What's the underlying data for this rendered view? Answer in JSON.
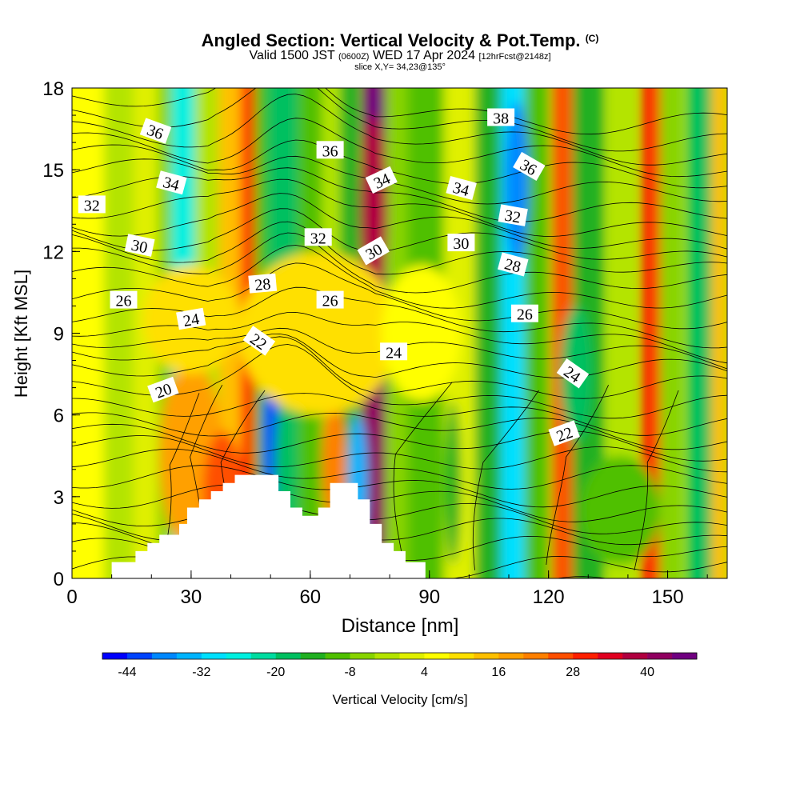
{
  "chart_data": {
    "type": "heatmap",
    "title": "Angled Section: Vertical Velocity & Pot.Temp.",
    "title_mark": "(C)",
    "subtitle": {
      "valid": "Valid 1500 JST",
      "utc": "(0600Z)",
      "date": "WED 17 Apr 2024",
      "forecast": "[12hrFcst@2148z]"
    },
    "slice_label": "slice X,Y= 34,23@135°",
    "xlabel": "Distance [nm]",
    "ylabel": "Height [Kft MSL]",
    "xlim": [
      0,
      165
    ],
    "ylim": [
      0,
      18
    ],
    "xticks": [
      "0",
      "30",
      "60",
      "90",
      "120",
      "150"
    ],
    "xtick_values": [
      0,
      30,
      60,
      90,
      120,
      150
    ],
    "yticks": [
      "0",
      "3",
      "6",
      "9",
      "12",
      "15",
      "18"
    ],
    "ytick_values": [
      0,
      3,
      6,
      9,
      12,
      15,
      18
    ],
    "colorbar": {
      "label": "Vertical Velocity [cm/s]",
      "tick_labels": [
        "-44",
        "-32",
        "-20",
        "-8",
        "4",
        "16",
        "28",
        "40"
      ],
      "tick_values": [
        -44,
        -32,
        -20,
        -8,
        4,
        16,
        28,
        40
      ],
      "levels": [
        -48,
        -44,
        -40,
        -36,
        -32,
        -28,
        -24,
        -20,
        -16,
        -12,
        -8,
        -4,
        0,
        4,
        8,
        12,
        16,
        20,
        24,
        28,
        32,
        36,
        40,
        44,
        48
      ],
      "colors": [
        "#0000ff",
        "#0044ff",
        "#0088ff",
        "#00b4ff",
        "#00e0ff",
        "#00f0e0",
        "#00dca0",
        "#00c060",
        "#20b020",
        "#50c000",
        "#88d400",
        "#b4e400",
        "#e0f000",
        "#ffff00",
        "#ffe000",
        "#ffc000",
        "#ffa000",
        "#ff8000",
        "#ff5000",
        "#ff2000",
        "#e00020",
        "#b00040",
        "#900060",
        "#700080"
      ]
    },
    "velocity_columns": [
      {
        "x": 3,
        "w": 10,
        "v": 6
      },
      {
        "x": 12,
        "w": 8,
        "v": -4
      },
      {
        "x": 19,
        "w": 7,
        "v": 2
      },
      {
        "x": 24,
        "w": 5,
        "v": -8
      },
      {
        "x": 28,
        "w": 6,
        "v": -28
      },
      {
        "x": 34,
        "w": 6,
        "v": -4
      },
      {
        "x": 40,
        "w": 6,
        "v": 12
      },
      {
        "x": 45,
        "w": 5,
        "v": 30
      },
      {
        "x": 48,
        "w": 4,
        "v": -12
      },
      {
        "x": 53,
        "w": 8,
        "v": -20
      },
      {
        "x": 60,
        "w": 6,
        "v": -10
      },
      {
        "x": 66,
        "w": 6,
        "v": -4
      },
      {
        "x": 70,
        "w": 5,
        "v": -16
      },
      {
        "x": 76,
        "w": 6,
        "v": 40
      },
      {
        "x": 82,
        "w": 6,
        "v": -8
      },
      {
        "x": 89,
        "w": 9,
        "v": -12
      },
      {
        "x": 98,
        "w": 8,
        "v": 2
      },
      {
        "x": 105,
        "w": 7,
        "v": -16
      },
      {
        "x": 111,
        "w": 6,
        "v": -32
      },
      {
        "x": 117,
        "w": 6,
        "v": -12
      },
      {
        "x": 124,
        "w": 6,
        "v": 24
      },
      {
        "x": 130,
        "w": 8,
        "v": -16
      },
      {
        "x": 138,
        "w": 6,
        "v": -4
      },
      {
        "x": 146,
        "w": 5,
        "v": 28
      },
      {
        "x": 151,
        "w": 6,
        "v": -8
      },
      {
        "x": 158,
        "w": 6,
        "v": -20
      },
      {
        "x": 163,
        "w": 4,
        "v": 12
      }
    ],
    "velocity_blobs": [
      {
        "x": 30,
        "y": 4.5,
        "rx": 8,
        "ry": 3.5,
        "v": 16
      },
      {
        "x": 38,
        "y": 3.2,
        "rx": 5,
        "ry": 2.2,
        "v": 24
      },
      {
        "x": 51,
        "y": 5,
        "rx": 3,
        "ry": 3.5,
        "v": -44
      },
      {
        "x": 54,
        "y": 4,
        "rx": 3,
        "ry": 3,
        "v": -20
      },
      {
        "x": 66,
        "y": 4.2,
        "rx": 3,
        "ry": 2.5,
        "v": 20
      },
      {
        "x": 72,
        "y": 3.5,
        "rx": 2.5,
        "ry": 2.5,
        "v": -36
      },
      {
        "x": 76,
        "y": 16,
        "rx": 2.5,
        "ry": 2.5,
        "v": 48
      },
      {
        "x": 76,
        "y": 13.5,
        "rx": 3.5,
        "ry": 3.5,
        "v": 36
      },
      {
        "x": 96,
        "y": 3.5,
        "rx": 2,
        "ry": 3,
        "v": -16
      },
      {
        "x": 112,
        "y": 14.5,
        "rx": 3,
        "ry": 3,
        "v": -40
      },
      {
        "x": 127,
        "y": 7.5,
        "rx": 4,
        "ry": 2.5,
        "v": -20
      },
      {
        "x": 62,
        "y": 9,
        "rx": 20,
        "ry": 3,
        "v": 10
      },
      {
        "x": 30,
        "y": 9.5,
        "rx": 12,
        "ry": 2,
        "v": 8
      },
      {
        "x": 138,
        "y": 2.5,
        "rx": 10,
        "ry": 2,
        "v": -12
      },
      {
        "x": 88,
        "y": 9,
        "rx": 10,
        "ry": 2.5,
        "v": 6
      }
    ],
    "terrain": [
      [
        10,
        0.6
      ],
      [
        16,
        0.6
      ],
      [
        16,
        1.0
      ],
      [
        19,
        1.0
      ],
      [
        19,
        1.3
      ],
      [
        22,
        1.3
      ],
      [
        22,
        1.6
      ],
      [
        27,
        1.6
      ],
      [
        27,
        2.0
      ],
      [
        29,
        2.0
      ],
      [
        29,
        2.6
      ],
      [
        32,
        2.6
      ],
      [
        32,
        2.9
      ],
      [
        35,
        2.9
      ],
      [
        35,
        3.2
      ],
      [
        38,
        3.2
      ],
      [
        38,
        3.5
      ],
      [
        41,
        3.5
      ],
      [
        41,
        3.8
      ],
      [
        52,
        3.8
      ],
      [
        52,
        3.2
      ],
      [
        55,
        3.2
      ],
      [
        55,
        2.6
      ],
      [
        58,
        2.6
      ],
      [
        58,
        2.3
      ],
      [
        62,
        2.3
      ],
      [
        62,
        2.6
      ],
      [
        65,
        2.6
      ],
      [
        65,
        3.5
      ],
      [
        72,
        3.5
      ],
      [
        72,
        2.9
      ],
      [
        75,
        2.9
      ],
      [
        75,
        2.0
      ],
      [
        78,
        2.0
      ],
      [
        78,
        1.3
      ],
      [
        81,
        1.3
      ],
      [
        81,
        1.0
      ],
      [
        84,
        1.0
      ],
      [
        84,
        0.6
      ],
      [
        89,
        0.6
      ],
      [
        89,
        0
      ]
    ],
    "isotherms": [
      {
        "label": "20",
        "y_start": 3.6,
        "y_end": 4.2,
        "lx": 23,
        "ly": 6.9,
        "rot": -20
      },
      {
        "label": "22",
        "y_start": 5.3,
        "y_end": 4.6,
        "lx": 47,
        "ly": 8.7,
        "rot": 35
      },
      {
        "label": "24",
        "y_start": 6.9,
        "y_end": 5.6,
        "lx": 30,
        "ly": 9.5,
        "rot": -10
      },
      {
        "label": "26",
        "y_start": 8.2,
        "y_end": 6.9,
        "lx": 13,
        "ly": 10.2,
        "rot": 0
      },
      {
        "label": "28",
        "y_start": 9.4,
        "y_end": 8.2,
        "lx": 48,
        "ly": 10.8,
        "rot": -5
      },
      {
        "label": "30",
        "y_start": 10.7,
        "y_end": 9.6,
        "lx": 17,
        "ly": 12.2,
        "rot": 12
      },
      {
        "label": "32",
        "y_start": 12.2,
        "y_end": 11.3,
        "lx": 5,
        "ly": 13.7,
        "rot": 0
      },
      {
        "label": "34",
        "y_start": 13.7,
        "y_end": 12.8,
        "lx": 25,
        "ly": 14.5,
        "rot": 15
      },
      {
        "label": "36",
        "y_start": 15.3,
        "y_end": 14.5,
        "lx": 21,
        "ly": 16.4,
        "rot": 20
      },
      {
        "label": "38",
        "y_start": 17.0,
        "y_end": 16.3,
        "lx": 108,
        "ly": 16.9,
        "rot": 0
      }
    ],
    "contour_labels": [
      {
        "text": "36",
        "x": 65,
        "y": 15.7,
        "rot": 0
      },
      {
        "text": "34",
        "x": 78,
        "y": 14.6,
        "rot": -25
      },
      {
        "text": "34",
        "x": 98,
        "y": 14.3,
        "rot": 15
      },
      {
        "text": "36",
        "x": 115,
        "y": 15.1,
        "rot": 30
      },
      {
        "text": "32",
        "x": 62,
        "y": 12.5,
        "rot": 0
      },
      {
        "text": "30",
        "x": 76,
        "y": 12.0,
        "rot": -30
      },
      {
        "text": "30",
        "x": 98,
        "y": 12.3,
        "rot": 0
      },
      {
        "text": "32",
        "x": 111,
        "y": 13.3,
        "rot": 10
      },
      {
        "text": "28",
        "x": 111,
        "y": 11.5,
        "rot": 15
      },
      {
        "text": "26",
        "x": 65,
        "y": 10.2,
        "rot": 0
      },
      {
        "text": "26",
        "x": 114,
        "y": 9.7,
        "rot": 0
      },
      {
        "text": "24",
        "x": 81,
        "y": 8.3,
        "rot": 0
      },
      {
        "text": "24",
        "x": 126,
        "y": 7.5,
        "rot": 35
      },
      {
        "text": "22",
        "x": 124,
        "y": 5.3,
        "rot": -20
      }
    ]
  }
}
